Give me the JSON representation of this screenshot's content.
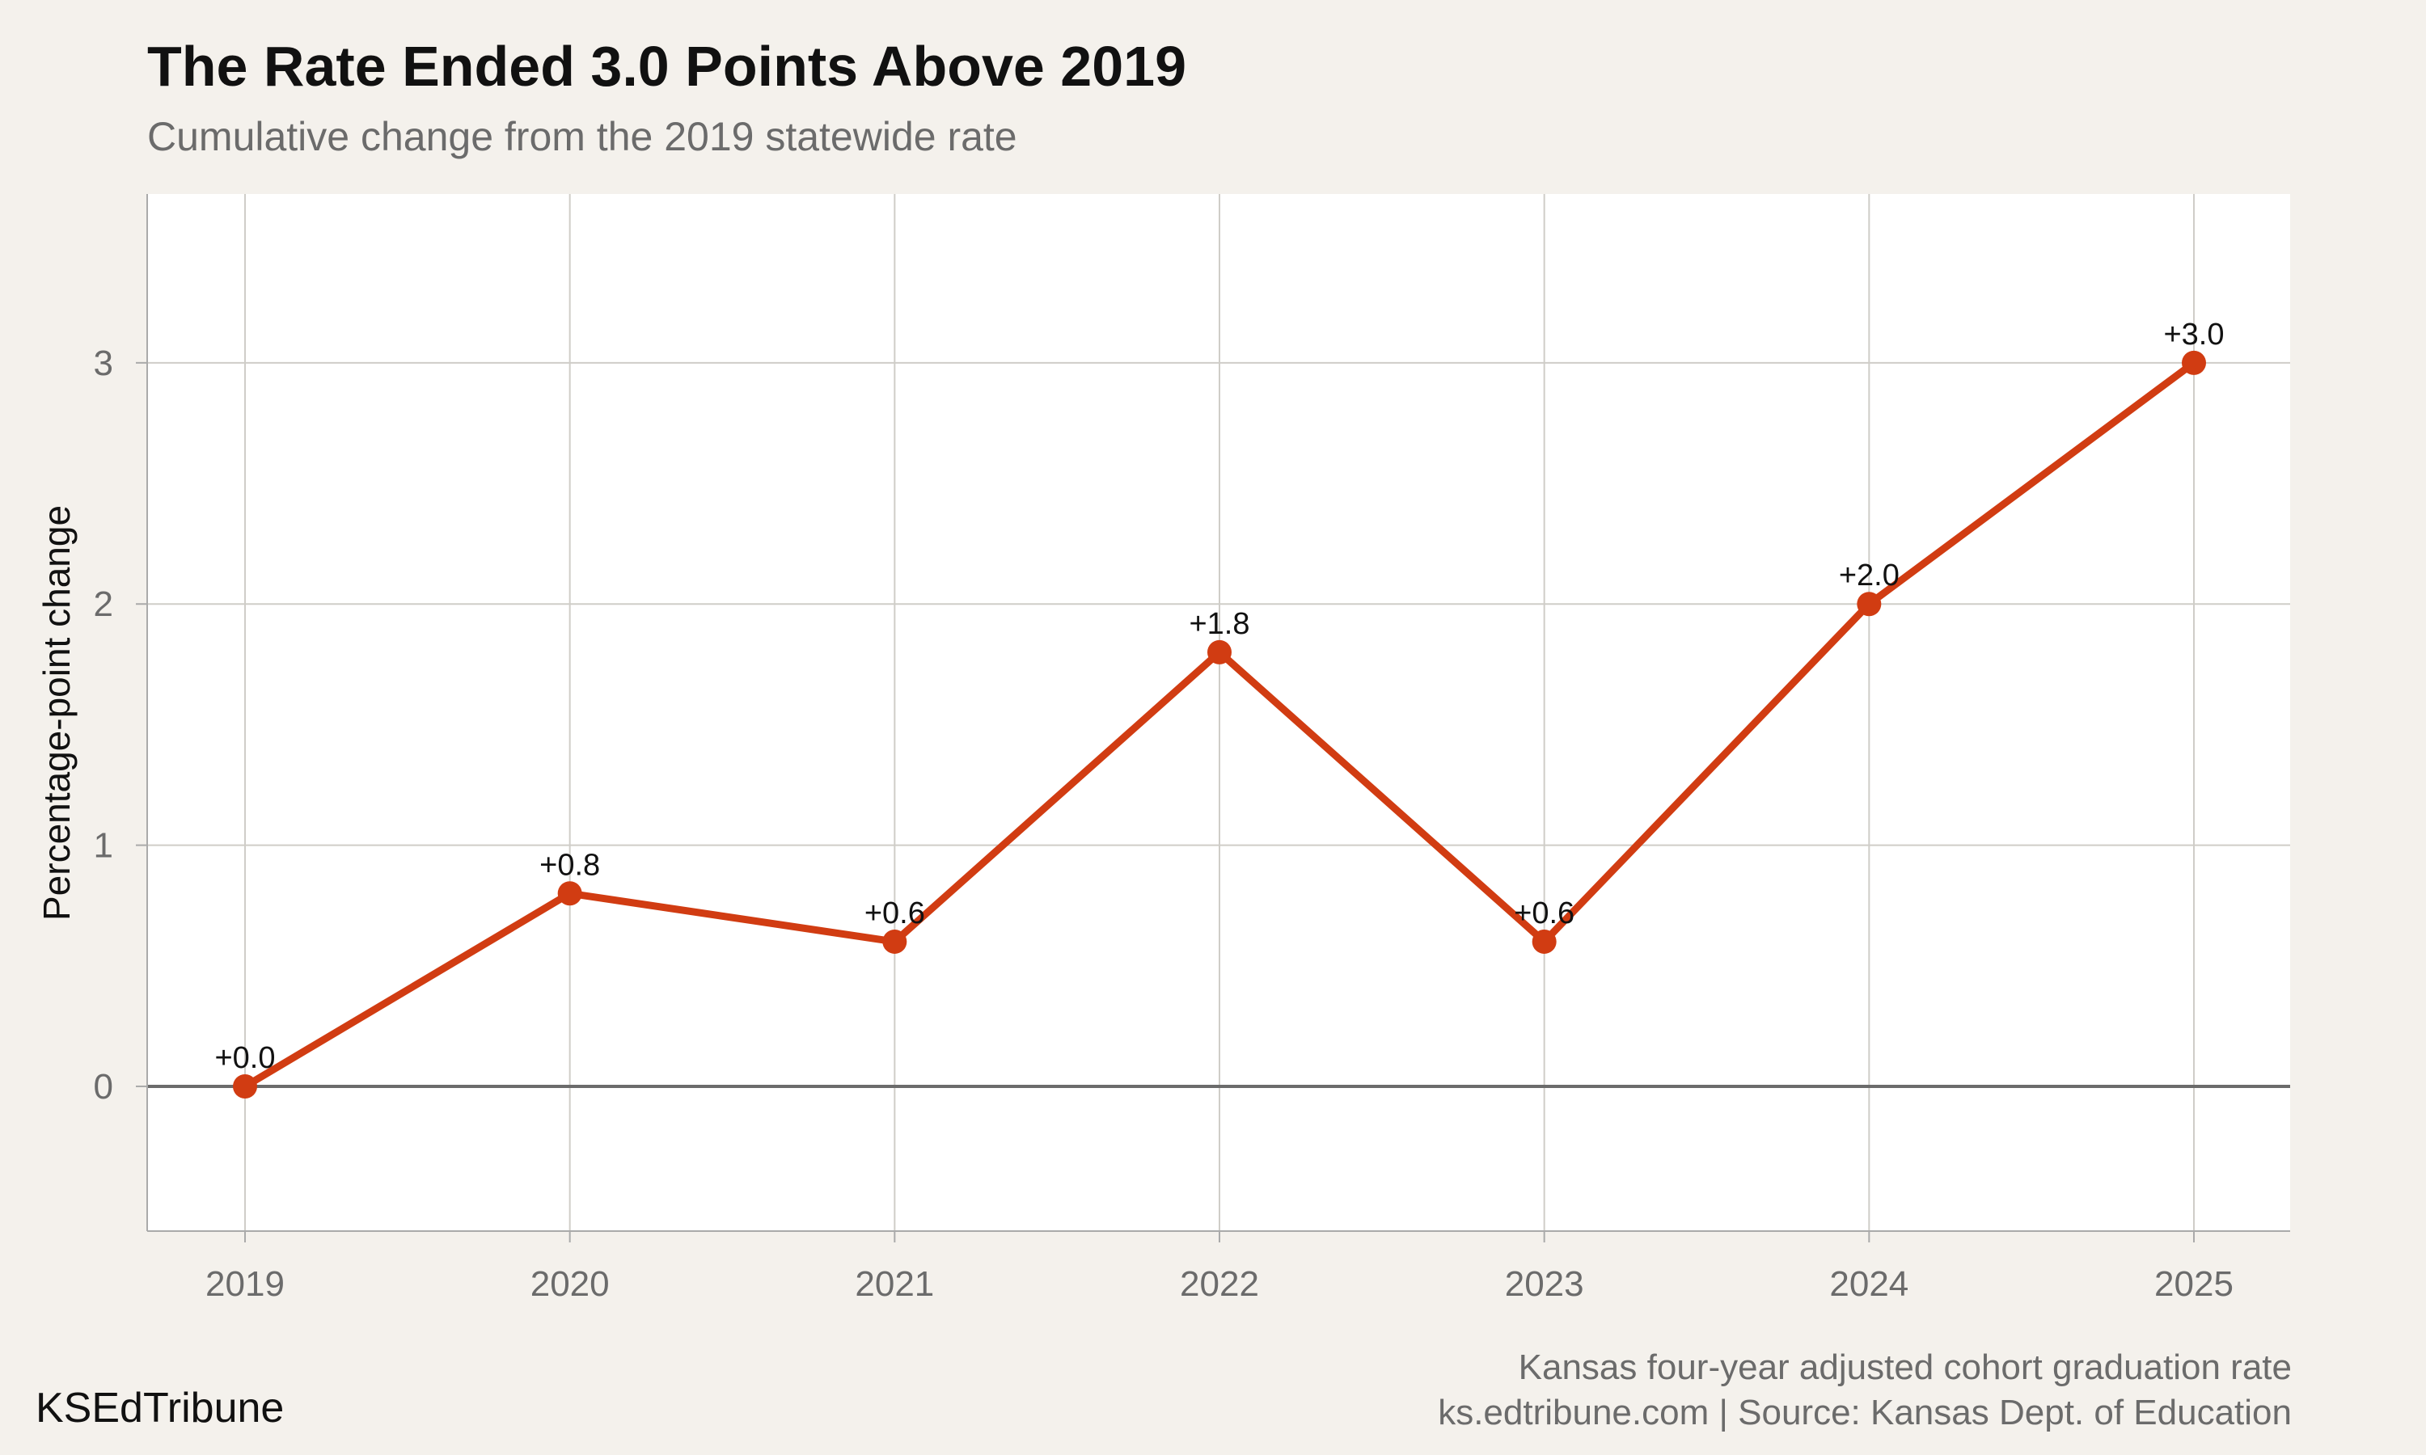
{
  "chart_data": {
    "type": "line",
    "title": "The Rate Ended 3.0 Points Above 2019",
    "subtitle": "Cumulative change from the 2019 statewide rate",
    "xlabel": "",
    "ylabel": "Percentage-point change",
    "categories": [
      "2019",
      "2020",
      "2021",
      "2022",
      "2023",
      "2024",
      "2025"
    ],
    "values": [
      0.0,
      0.8,
      0.6,
      1.8,
      0.6,
      2.0,
      3.0
    ],
    "data_labels": [
      "+0.0",
      "+0.8",
      "+0.6",
      "+1.8",
      "+0.6",
      "+2.0",
      "+3.0"
    ],
    "yticks": [
      0,
      1,
      2,
      3
    ],
    "ylim": [
      -0.6,
      3.7
    ],
    "grid": true,
    "line_color": "#d13c12",
    "zero_line_color": "#6b6b6b"
  },
  "footer": {
    "line1": "Kansas four-year adjusted cohort graduation rate",
    "line2": "ks.edtribune.com | Source: Kansas Dept. of Education"
  },
  "brand": "KSEdTribune"
}
